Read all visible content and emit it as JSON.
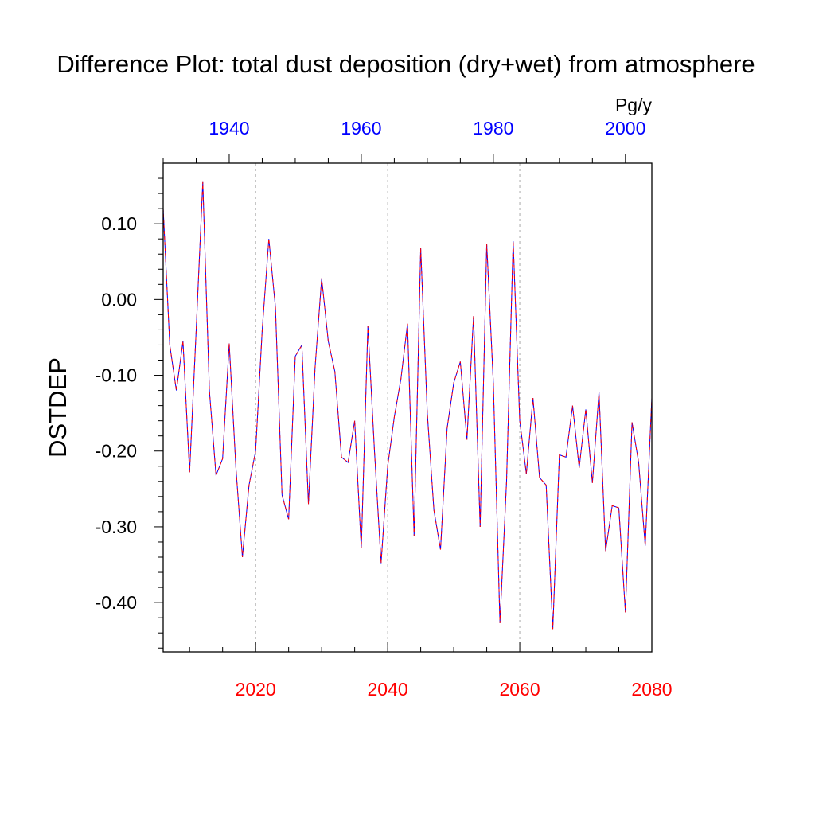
{
  "chart_data": {
    "type": "line",
    "title": "Difference Plot: total dust deposition (dry+wet) from atmosphere",
    "ylabel": "DSTDEP",
    "units": "Pg/y",
    "bottom_axis": {
      "ticks": [
        2020,
        2040,
        2060,
        2080
      ],
      "color": "#ff0000",
      "range": [
        2006,
        2080
      ]
    },
    "top_axis": {
      "ticks": [
        1940,
        1960,
        1980,
        2000
      ],
      "color": "#0000ff",
      "range": [
        1930,
        2004
      ]
    },
    "ylim": [
      -0.465,
      0.18
    ],
    "yticks": [
      0.1,
      0.0,
      -0.1,
      -0.2,
      -0.3,
      -0.4
    ],
    "ytick_labels": [
      "0.10",
      "0.00",
      "-0.10",
      "-0.20",
      "-0.30",
      "-0.40"
    ],
    "grid": "vertical dotted at major bottom ticks",
    "series": [
      {
        "color": "#0000ff",
        "style": "solid",
        "x": [
          2006,
          2007,
          2008,
          2009,
          2010,
          2011,
          2012,
          2013,
          2014,
          2015,
          2016,
          2017,
          2018,
          2019,
          2020,
          2021,
          2022,
          2023,
          2024,
          2025,
          2026,
          2027,
          2028,
          2029,
          2030,
          2031,
          2032,
          2033,
          2034,
          2035,
          2036,
          2037,
          2038,
          2039,
          2040,
          2041,
          2042,
          2043,
          2044,
          2045,
          2046,
          2047,
          2048,
          2049,
          2050,
          2051,
          2052,
          2053,
          2054,
          2055,
          2056,
          2057,
          2058,
          2059,
          2060,
          2061,
          2062,
          2063,
          2064,
          2065,
          2066,
          2067,
          2068,
          2069,
          2070,
          2071,
          2072,
          2073,
          2074,
          2075,
          2076,
          2077,
          2078,
          2079,
          2080
        ],
        "y": [
          0.12,
          -0.06,
          -0.12,
          -0.055,
          -0.228,
          -0.04,
          0.155,
          -0.12,
          -0.232,
          -0.21,
          -0.058,
          -0.22,
          -0.34,
          -0.245,
          -0.2,
          -0.04,
          0.08,
          -0.01,
          -0.258,
          -0.29,
          -0.075,
          -0.06,
          -0.27,
          -0.09,
          0.028,
          -0.055,
          -0.095,
          -0.208,
          -0.215,
          -0.16,
          -0.328,
          -0.035,
          -0.2,
          -0.348,
          -0.22,
          -0.155,
          -0.105,
          -0.032,
          -0.312,
          0.068,
          -0.15,
          -0.278,
          -0.33,
          -0.17,
          -0.11,
          -0.082,
          -0.185,
          -0.022,
          -0.3,
          0.073,
          -0.11,
          -0.427,
          -0.24,
          0.077,
          -0.16,
          -0.23,
          -0.13,
          -0.235,
          -0.245,
          -0.435,
          -0.205,
          -0.208,
          -0.14,
          -0.222,
          -0.145,
          -0.242,
          -0.122,
          -0.332,
          -0.272,
          -0.275,
          -0.413,
          -0.162,
          -0.215,
          -0.325,
          -0.13
        ]
      },
      {
        "color": "#ff0000",
        "style": "dashed",
        "x": [
          2006,
          2007,
          2008,
          2009,
          2010,
          2011,
          2012,
          2013,
          2014,
          2015,
          2016,
          2017,
          2018,
          2019,
          2020,
          2021,
          2022,
          2023,
          2024,
          2025,
          2026,
          2027,
          2028,
          2029,
          2030,
          2031,
          2032,
          2033,
          2034,
          2035,
          2036,
          2037,
          2038,
          2039,
          2040,
          2041,
          2042,
          2043,
          2044,
          2045,
          2046,
          2047,
          2048,
          2049,
          2050,
          2051,
          2052,
          2053,
          2054,
          2055,
          2056,
          2057,
          2058,
          2059,
          2060,
          2061,
          2062,
          2063,
          2064,
          2065,
          2066,
          2067,
          2068,
          2069,
          2070,
          2071,
          2072,
          2073,
          2074,
          2075,
          2076,
          2077,
          2078,
          2079,
          2080
        ],
        "y": [
          0.12,
          -0.06,
          -0.12,
          -0.055,
          -0.228,
          -0.04,
          0.155,
          -0.12,
          -0.232,
          -0.21,
          -0.058,
          -0.22,
          -0.34,
          -0.245,
          -0.2,
          -0.04,
          0.08,
          -0.01,
          -0.258,
          -0.29,
          -0.075,
          -0.06,
          -0.27,
          -0.09,
          0.028,
          -0.055,
          -0.095,
          -0.208,
          -0.215,
          -0.16,
          -0.328,
          -0.035,
          -0.2,
          -0.348,
          -0.22,
          -0.155,
          -0.105,
          -0.032,
          -0.312,
          0.068,
          -0.15,
          -0.278,
          -0.33,
          -0.17,
          -0.11,
          -0.082,
          -0.185,
          -0.022,
          -0.3,
          0.073,
          -0.11,
          -0.427,
          -0.24,
          0.077,
          -0.16,
          -0.23,
          -0.13,
          -0.235,
          -0.245,
          -0.435,
          -0.205,
          -0.208,
          -0.14,
          -0.222,
          -0.145,
          -0.242,
          -0.122,
          -0.332,
          -0.272,
          -0.275,
          -0.413,
          -0.162,
          -0.215,
          -0.325,
          -0.13
        ]
      }
    ]
  }
}
